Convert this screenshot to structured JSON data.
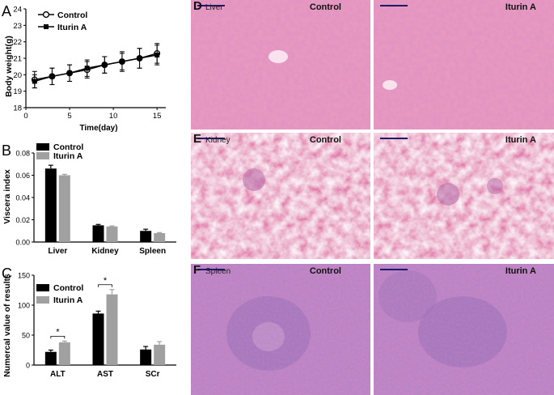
{
  "panelA": {
    "label": "A",
    "legend": [
      "Control",
      "Iturin A"
    ],
    "ylabel": "Body weight(g)",
    "xlabel": "Time(day)",
    "yticks": [
      "18",
      "19",
      "20",
      "21",
      "22",
      "23",
      "24"
    ],
    "xticks": [
      "0",
      "5",
      "10",
      "15"
    ]
  },
  "panelB": {
    "label": "B",
    "legend": [
      "Control",
      "Iturin A"
    ],
    "ylabel": "Viscera index",
    "yticks": [
      "0.00",
      "0.02",
      "0.04",
      "0.06",
      "0.08"
    ],
    "categories": [
      "Liver",
      "Kidney",
      "Spleen"
    ]
  },
  "panelC": {
    "label": "C",
    "legend": [
      "Control",
      "Iturin A"
    ],
    "ylabel": "Numercal value of results",
    "yticks": [
      "0",
      "50",
      "100",
      "150"
    ],
    "categories": [
      "ALT",
      "AST",
      "SCr"
    ],
    "sig": "*"
  },
  "histology": {
    "D": {
      "label": "D",
      "organ": "Liver",
      "left": "Control",
      "right": "Iturin A"
    },
    "E": {
      "label": "E",
      "organ": "Kidney",
      "left": "Control",
      "right": "Iturin A"
    },
    "F": {
      "label": "F",
      "organ": "Spleen",
      "left": "Control",
      "right": "Iturin A"
    }
  },
  "colors": {
    "control": "#000000",
    "iturin": "#a0a0a0",
    "he_liver": "#e58fb6",
    "he_kidney": "#ea9ac0",
    "he_spleen": "#b873b6"
  },
  "chart_data": [
    {
      "type": "line",
      "x": [
        1,
        3,
        5,
        7,
        9,
        11,
        13,
        15
      ],
      "series": [
        {
          "name": "Control",
          "values": [
            19.7,
            19.9,
            20.1,
            20.3,
            20.6,
            20.8,
            21.0,
            21.3
          ],
          "err": [
            0.5,
            0.5,
            0.5,
            0.5,
            0.5,
            0.6,
            0.6,
            0.6
          ]
        },
        {
          "name": "Iturin A",
          "values": [
            19.6,
            19.9,
            20.1,
            20.4,
            20.6,
            20.8,
            21.0,
            21.2
          ],
          "err": [
            0.4,
            0.5,
            0.5,
            0.5,
            0.5,
            0.5,
            0.6,
            0.6
          ]
        }
      ],
      "xlabel": "Time(day)",
      "ylabel": "Body weight(g)",
      "xlim": [
        0,
        16
      ],
      "ylim": [
        18,
        24
      ],
      "legend": "top-left"
    },
    {
      "type": "bar",
      "categories": [
        "Liver",
        "Kidney",
        "Spleen"
      ],
      "series": [
        {
          "name": "Control",
          "values": [
            0.066,
            0.015,
            0.01
          ],
          "err": [
            0.003,
            0.0008,
            0.0015
          ]
        },
        {
          "name": "Iturin A",
          "values": [
            0.06,
            0.014,
            0.008
          ],
          "err": [
            0.0008,
            0.0005,
            0.0005
          ]
        }
      ],
      "ylabel": "Viscera index",
      "ylim": [
        0,
        0.08
      ],
      "legend": "top-left"
    },
    {
      "type": "bar",
      "categories": [
        "ALT",
        "AST",
        "SCr"
      ],
      "series": [
        {
          "name": "Control",
          "values": [
            22,
            86,
            26
          ],
          "err": [
            3,
            4,
            5
          ]
        },
        {
          "name": "Iturin A",
          "values": [
            38,
            118,
            34
          ],
          "err": [
            2,
            8,
            5
          ]
        }
      ],
      "ylabel": "Numercal value of results",
      "ylim": [
        0,
        150
      ],
      "legend": "top-left",
      "significance": [
        {
          "category": "ALT",
          "label": "*"
        },
        {
          "category": "AST",
          "label": "*"
        }
      ]
    }
  ]
}
